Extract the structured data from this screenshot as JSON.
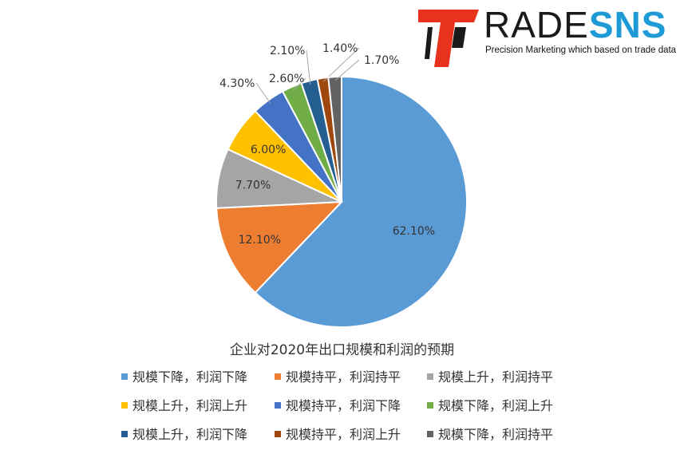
{
  "logo": {
    "brand_part1": "RADE",
    "brand_part2": "SNS",
    "tagline": "Precision Marketing which based on trade data",
    "colors": {
      "red": "#e8321e",
      "dark": "#1a1a1a",
      "blue": "#1e9bd7"
    }
  },
  "chart_data": {
    "type": "pie",
    "title": "企业对2020年出口规模和利润的预期",
    "slices": [
      {
        "label": "规模下降，利润下降",
        "value": 62.1,
        "value_label": "62.10%",
        "color": "#5b9bd5"
      },
      {
        "label": "规模持平，利润持平",
        "value": 12.1,
        "value_label": "12.10%",
        "color": "#ed7d31"
      },
      {
        "label": "规模上升，利润持平",
        "value": 7.7,
        "value_label": "7.70%",
        "color": "#a5a5a5"
      },
      {
        "label": "规模上升，利润上升",
        "value": 6.0,
        "value_label": "6.00%",
        "color": "#ffc000"
      },
      {
        "label": "规模持平，利润下降",
        "value": 4.3,
        "value_label": "4.30%",
        "color": "#4472c4"
      },
      {
        "label": "规模下降，利润上升",
        "value": 2.6,
        "value_label": "2.60%",
        "color": "#70ad47"
      },
      {
        "label": "规模上升，利润下降",
        "value": 2.1,
        "value_label": "2.10%",
        "color": "#255e91"
      },
      {
        "label": "规模持平，利润上升",
        "value": 1.4,
        "value_label": "1.40%",
        "color": "#9e480e"
      },
      {
        "label": "规模下降，利润持平",
        "value": 1.7,
        "value_label": "1.70%",
        "color": "#636363"
      }
    ],
    "legend_placement": "bottom"
  }
}
